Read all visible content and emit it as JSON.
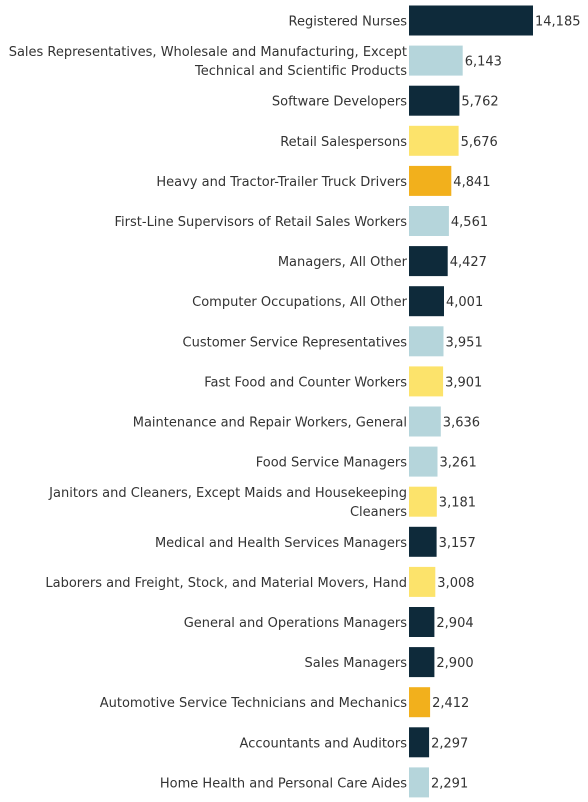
{
  "chart_data": {
    "type": "bar",
    "orientation": "horizontal",
    "title": "",
    "xlabel": "",
    "ylabel": "",
    "xlim": [
      0,
      14185
    ],
    "grid": false,
    "legend": "none",
    "colors": {
      "dark": "#0e2a3a",
      "lightblue": "#b5d5db",
      "yellow": "#fce36b",
      "orange": "#f2b01c"
    },
    "bars": [
      {
        "label": [
          "Registered Nurses"
        ],
        "value": 14185,
        "value_label": "14,185",
        "color": "dark"
      },
      {
        "label": [
          "Sales Representatives, Wholesale and Manufacturing, Except",
          "Technical and Scientific Products"
        ],
        "value": 6143,
        "value_label": "6,143",
        "color": "lightblue"
      },
      {
        "label": [
          "Software Developers"
        ],
        "value": 5762,
        "value_label": "5,762",
        "color": "dark"
      },
      {
        "label": [
          "Retail Salespersons"
        ],
        "value": 5676,
        "value_label": "5,676",
        "color": "yellow"
      },
      {
        "label": [
          "Heavy and Tractor-Trailer Truck Drivers"
        ],
        "value": 4841,
        "value_label": "4,841",
        "color": "orange"
      },
      {
        "label": [
          "First-Line Supervisors of Retail Sales Workers"
        ],
        "value": 4561,
        "value_label": "4,561",
        "color": "lightblue"
      },
      {
        "label": [
          "Managers, All Other"
        ],
        "value": 4427,
        "value_label": "4,427",
        "color": "dark"
      },
      {
        "label": [
          "Computer Occupations, All Other"
        ],
        "value": 4001,
        "value_label": "4,001",
        "color": "dark"
      },
      {
        "label": [
          "Customer Service Representatives"
        ],
        "value": 3951,
        "value_label": "3,951",
        "color": "lightblue"
      },
      {
        "label": [
          "Fast Food and Counter Workers"
        ],
        "value": 3901,
        "value_label": "3,901",
        "color": "yellow"
      },
      {
        "label": [
          "Maintenance and Repair Workers, General"
        ],
        "value": 3636,
        "value_label": "3,636",
        "color": "lightblue"
      },
      {
        "label": [
          "Food Service Managers"
        ],
        "value": 3261,
        "value_label": "3,261",
        "color": "lightblue"
      },
      {
        "label": [
          "Janitors and Cleaners, Except Maids and Housekeeping",
          "Cleaners"
        ],
        "value": 3181,
        "value_label": "3,181",
        "color": "yellow"
      },
      {
        "label": [
          "Medical and Health Services Managers"
        ],
        "value": 3157,
        "value_label": "3,157",
        "color": "dark"
      },
      {
        "label": [
          "Laborers and Freight, Stock, and Material Movers, Hand"
        ],
        "value": 3008,
        "value_label": "3,008",
        "color": "yellow"
      },
      {
        "label": [
          "General and Operations Managers"
        ],
        "value": 2904,
        "value_label": "2,904",
        "color": "dark"
      },
      {
        "label": [
          "Sales Managers"
        ],
        "value": 2900,
        "value_label": "2,900",
        "color": "dark"
      },
      {
        "label": [
          "Automotive Service Technicians and Mechanics"
        ],
        "value": 2412,
        "value_label": "2,412",
        "color": "orange"
      },
      {
        "label": [
          "Accountants and Auditors"
        ],
        "value": 2297,
        "value_label": "2,297",
        "color": "dark"
      },
      {
        "label": [
          "Home Health and Personal Care Aides"
        ],
        "value": 2291,
        "value_label": "2,291",
        "color": "lightblue"
      }
    ]
  }
}
